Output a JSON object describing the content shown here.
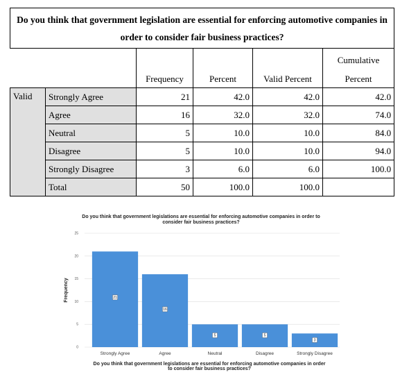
{
  "table": {
    "title": "Do you think that government legislation are essential for enforcing automotive companies in order to consider fair business practices?",
    "headers": {
      "frequency": "Frequency",
      "percent": "Percent",
      "valid_percent": "Valid Percent",
      "cumulative_top": "Cumulative",
      "cumulative_bottom": "Percent"
    },
    "group_label": "Valid",
    "rows": [
      {
        "label": "Strongly Agree",
        "frequency": "21",
        "percent": "42.0",
        "valid_percent": "42.0",
        "cumulative": "42.0"
      },
      {
        "label": "Agree",
        "frequency": "16",
        "percent": "32.0",
        "valid_percent": "32.0",
        "cumulative": "74.0"
      },
      {
        "label": "Neutral",
        "frequency": "5",
        "percent": "10.0",
        "valid_percent": "10.0",
        "cumulative": "84.0"
      },
      {
        "label": "Disagree",
        "frequency": "5",
        "percent": "10.0",
        "valid_percent": "10.0",
        "cumulative": "94.0"
      },
      {
        "label": "Strongly Disagree",
        "frequency": "3",
        "percent": "6.0",
        "valid_percent": "6.0",
        "cumulative": "100.0"
      },
      {
        "label": "Total",
        "frequency": "50",
        "percent": "100.0",
        "valid_percent": "100.0",
        "cumulative": ""
      }
    ]
  },
  "chart_data": {
    "type": "bar",
    "title_line1": "Do you think that government legislations are essential for enforcing automotive companies in order to",
    "title_line2": "consider fair business practices?",
    "categories": [
      "Strongly Agree",
      "Agree",
      "Neutral",
      "Disagree",
      "Strongly Disagree"
    ],
    "values": [
      21,
      16,
      5,
      5,
      3
    ],
    "data_labels": [
      "21",
      "16",
      "5",
      "5",
      "3"
    ],
    "xlabel_line1": "Do you think that government legislations are essential for enforcing automotive companies in order",
    "xlabel_line2": "to consider fair business practices?",
    "ylabel": "Frequency",
    "ylim": [
      0,
      25
    ],
    "yticks": [
      "0",
      "5",
      "10",
      "15",
      "20",
      "25"
    ],
    "grid": true,
    "bar_color": "#4a90d9"
  }
}
